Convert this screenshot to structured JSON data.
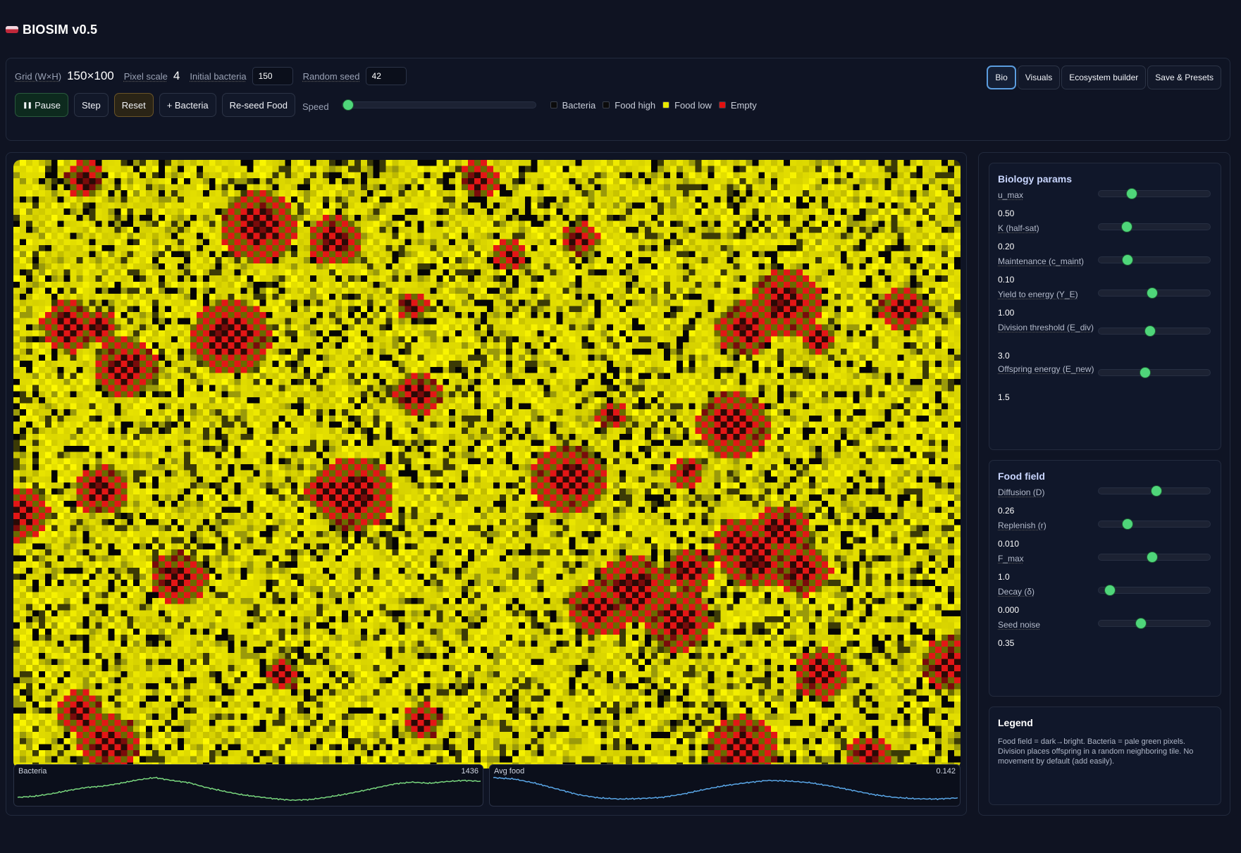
{
  "app": {
    "title": "BIOSIM v0.5",
    "logo_icon": "petri-dish-icon"
  },
  "toolbar": {
    "grid_label": "Grid (W×H)",
    "grid_value": "150×100",
    "pixel_scale_label": "Pixel scale",
    "pixel_scale_value": "4",
    "initial_bacteria_label": "Initial bacteria",
    "initial_bacteria_value": "150",
    "random_seed_label": "Random seed",
    "random_seed_value": "42",
    "pause_label": "Pause",
    "step_label": "Step",
    "reset_label": "Reset",
    "add_bacteria_label": "+ Bacteria",
    "reseed_food_label": "Re-seed Food",
    "speed_label": "Speed",
    "speed_value": 0.0
  },
  "legend_inline": [
    {
      "label": "Bacteria",
      "color": "#0b0b0b"
    },
    {
      "label": "Food high",
      "color": "#0b0b0b"
    },
    {
      "label": "Food low",
      "color": "#e8e800"
    },
    {
      "label": "Empty",
      "color": "#e01010"
    }
  ],
  "tabs": [
    {
      "label": "Bio",
      "active": true
    },
    {
      "label": "Visuals",
      "active": false
    },
    {
      "label": "Ecosystem builder",
      "active": false
    },
    {
      "label": "Save & Presets",
      "active": false
    }
  ],
  "charts": {
    "bacteria": {
      "label": "Bacteria",
      "value": "1436",
      "color": "#79d77e"
    },
    "avg_food": {
      "label": "Avg food",
      "value": "0.142",
      "color": "#5aa7e8"
    }
  },
  "chart_data": [
    {
      "type": "line",
      "title": "Bacteria",
      "series": [
        {
          "values": [
            0.2,
            0.24,
            0.33,
            0.45,
            0.55,
            0.6,
            0.7,
            0.82,
            0.9,
            0.8,
            0.72,
            0.55,
            0.42,
            0.3,
            0.22,
            0.15,
            0.1,
            0.12,
            0.2,
            0.3,
            0.42,
            0.55,
            0.68,
            0.74,
            0.7,
            0.76,
            0.8,
            0.77
          ]
        }
      ]
    },
    {
      "type": "line",
      "title": "Avg food",
      "series": [
        {
          "values": [
            0.9,
            0.85,
            0.7,
            0.5,
            0.3,
            0.18,
            0.14,
            0.16,
            0.2,
            0.32,
            0.48,
            0.62,
            0.72,
            0.8,
            0.78,
            0.72,
            0.6,
            0.45,
            0.3,
            0.2,
            0.15,
            0.14,
            0.18
          ]
        }
      ]
    }
  ],
  "bio": {
    "title": "Biology params",
    "params": [
      {
        "label": "u_max",
        "value": "0.50",
        "position": 0.3
      },
      {
        "label": "K (half-sat)",
        "value": "0.20",
        "position": 0.25
      },
      {
        "label": "Maintenance (c_maint)",
        "value": "0.10",
        "position": 0.26
      },
      {
        "label": "Yield to energy (Y_E)",
        "value": "1.00",
        "position": 0.48
      },
      {
        "label": "Division threshold (E_div)",
        "value": "3.0",
        "position": 0.46
      },
      {
        "label": "Offspring energy (E_new)",
        "value": "1.5",
        "position": 0.42
      }
    ]
  },
  "food": {
    "title": "Food field",
    "params": [
      {
        "label": "Diffusion (D)",
        "value": "0.26",
        "position": 0.52
      },
      {
        "label": "Replenish (r)",
        "value": "0.010",
        "position": 0.26
      },
      {
        "label": "F_max",
        "value": "1.0",
        "position": 0.48
      },
      {
        "label": "Decay (δ)",
        "value": "0.000",
        "position": 0.1
      },
      {
        "label": "Seed noise",
        "value": "0.35",
        "position": 0.38
      }
    ]
  },
  "legend": {
    "title": "Legend",
    "text": "Food field = dark→bright. Bacteria = pale green pixels. Division places offspring in a random neighboring tile. No movement by default (add easily)."
  }
}
